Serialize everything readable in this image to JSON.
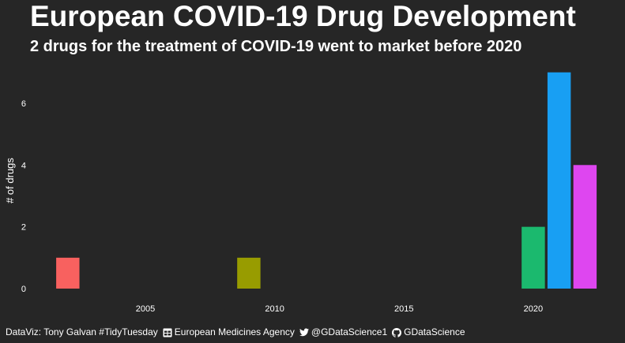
{
  "title": "European COVID-19 Drug Development",
  "subtitle": "2 drugs for the treatment of COVID-19 went to market before 2020",
  "caption": {
    "credit": "DataViz: Tony Galvan #TidyTuesday",
    "source": "European Medicines Agency",
    "twitter": "@GDataScience1",
    "github": "GDataScience"
  },
  "icons": [
    "table-icon",
    "twitter-icon",
    "github-icon"
  ],
  "chart_data": {
    "type": "bar",
    "title": "European COVID-19 Drug Development",
    "subtitle": "2 drugs for the treatment of COVID-19 went to market before 2020",
    "xlabel": "",
    "ylabel": "# of drugs",
    "xlim": [
      2000.6,
      2022.6
    ],
    "ylim": [
      0,
      7.3
    ],
    "x_ticks": [
      2005,
      2010,
      2015,
      2020
    ],
    "y_ticks": [
      0,
      2,
      4,
      6
    ],
    "grid": false,
    "legend": "none",
    "bars": [
      {
        "year": 2002,
        "value": 1,
        "color": "#F8615F"
      },
      {
        "year": 2009,
        "value": 1,
        "color": "#989C00"
      },
      {
        "year": 2020,
        "value": 2,
        "color": "#1BB96E"
      },
      {
        "year": 2021,
        "value": 7,
        "color": "#189FF3"
      },
      {
        "year": 2022,
        "value": 4,
        "color": "#DE46F0"
      }
    ]
  }
}
